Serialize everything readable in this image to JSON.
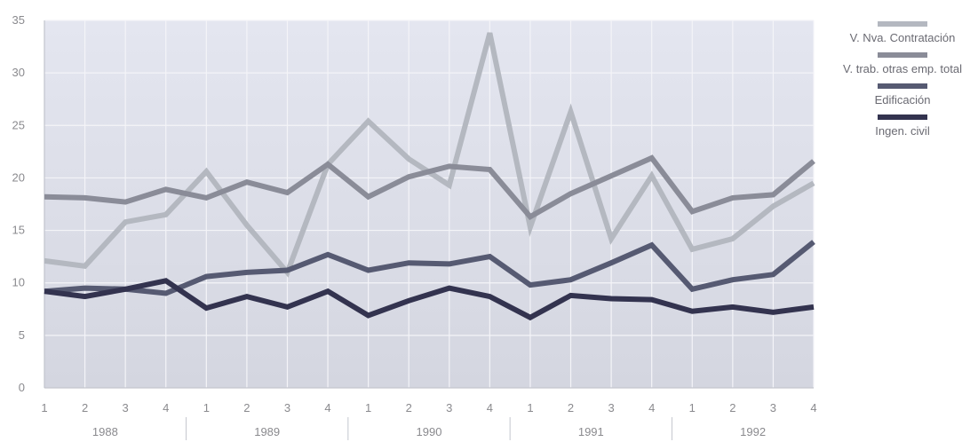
{
  "chart_data": {
    "type": "line",
    "title": "",
    "xlabel": "",
    "ylabel": "",
    "ylim": [
      0,
      35
    ],
    "yticks": [
      "0",
      "5",
      "10",
      "15",
      "20",
      "25",
      "30",
      "35"
    ],
    "x_quarter_labels": [
      "1",
      "2",
      "3",
      "4",
      "1",
      "2",
      "3",
      "4",
      "1",
      "2",
      "3",
      "4",
      "1",
      "2",
      "3",
      "4",
      "1",
      "2",
      "3",
      "4"
    ],
    "x_year_labels": [
      "1988",
      "1989",
      "1990",
      "1991",
      "1992"
    ],
    "grid": true,
    "legend_position": "right",
    "series": [
      {
        "name": "V. Nva. Contratación",
        "color": "#b4b8c0",
        "values": [
          12.1,
          11.6,
          15.8,
          16.5,
          20.6,
          15.5,
          11.0,
          21.3,
          25.4,
          21.8,
          19.3,
          33.8,
          15.3,
          26.3,
          14.2,
          20.2,
          13.2,
          14.2,
          17.3,
          19.5
        ]
      },
      {
        "name": "V. trab. otras emp. total",
        "color": "#8a8c98",
        "values": [
          18.2,
          18.1,
          17.7,
          18.9,
          18.1,
          19.6,
          18.6,
          21.3,
          18.2,
          20.1,
          21.1,
          20.8,
          16.3,
          18.5,
          20.2,
          21.9,
          16.8,
          18.1,
          18.4,
          21.6
        ]
      },
      {
        "name": "Edificación",
        "color": "#565a72",
        "values": [
          9.2,
          9.5,
          9.4,
          9.0,
          10.6,
          11.0,
          11.2,
          12.7,
          11.2,
          11.9,
          11.8,
          12.5,
          9.8,
          10.3,
          11.9,
          13.6,
          9.4,
          10.3,
          10.8,
          13.9
        ]
      },
      {
        "name": "Ingen. civil",
        "color": "#33334f",
        "values": [
          9.2,
          8.7,
          9.4,
          10.2,
          7.6,
          8.7,
          7.7,
          9.2,
          6.9,
          8.3,
          9.5,
          8.7,
          6.7,
          8.8,
          8.5,
          8.4,
          7.3,
          7.7,
          7.2,
          7.7
        ]
      }
    ]
  }
}
